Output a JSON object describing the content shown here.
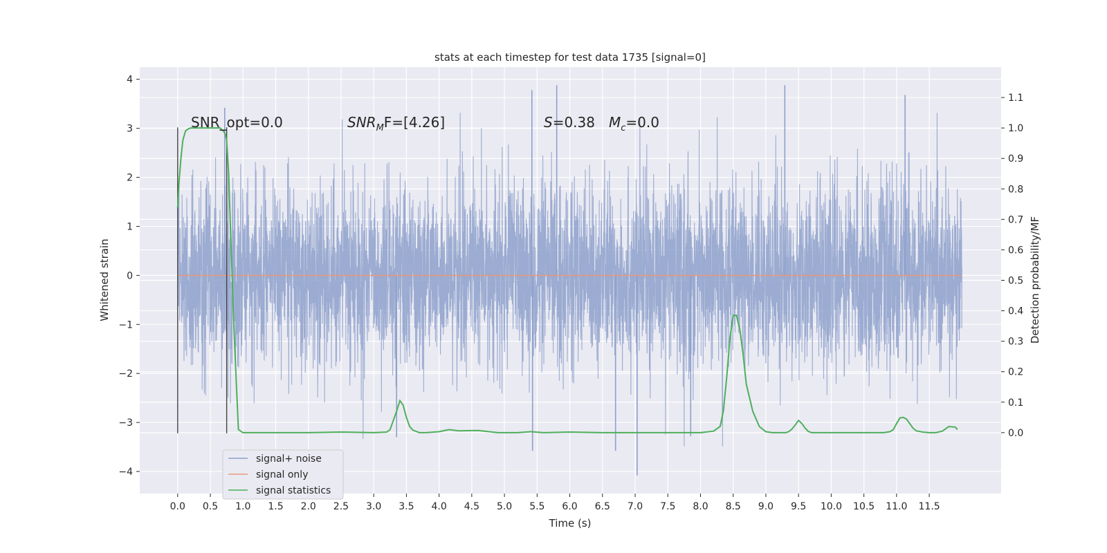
{
  "chart_data": {
    "type": "line",
    "title": "stats at each timestep for test data 1735 [signal=0]",
    "xlabel": "Time (s)",
    "ylabel": "Whitened strain",
    "y2label": "Detection probability/MF",
    "xlim": [
      -0.58,
      12.6
    ],
    "ylim": [
      -4.45,
      4.25
    ],
    "y2lim": [
      -0.2,
      1.2
    ],
    "grid": true,
    "legend_position": "lower-left",
    "x_ticks": [
      "0.0",
      "0.5",
      "1.0",
      "1.5",
      "2.0",
      "2.5",
      "3.0",
      "3.5",
      "4.0",
      "4.5",
      "5.0",
      "5.5",
      "6.0",
      "6.5",
      "7.0",
      "7.5",
      "8.0",
      "8.5",
      "9.0",
      "9.5",
      "10.0",
      "10.5",
      "11.0",
      "11.5"
    ],
    "y_ticks": [
      "4",
      "3",
      "2",
      "1",
      "0",
      "−1",
      "−2",
      "−3",
      "−4"
    ],
    "y2_ticks": [
      "1.1",
      "1.0",
      "0.9",
      "0.8",
      "0.7",
      "0.6",
      "0.5",
      "0.4",
      "0.3",
      "0.2",
      "0.1",
      "0.0"
    ],
    "series": [
      {
        "name": "signal+ noise",
        "color": "#8da0cb",
        "kind": "noise-band",
        "x_range": [
          0.0,
          12.0
        ],
        "typical_amplitude": 1.8,
        "max": 3.9,
        "min": -4.1,
        "peaks": [
          [
            0.72,
            3.42
          ],
          [
            5.42,
            3.78
          ],
          [
            5.8,
            3.88
          ],
          [
            9.29,
            3.88
          ],
          [
            11.13,
            3.68
          ]
        ],
        "troughs": [
          [
            3.35,
            -3.3
          ],
          [
            5.43,
            -3.58
          ],
          [
            6.7,
            -3.58
          ],
          [
            7.03,
            -4.08
          ],
          [
            7.85,
            -3.28
          ]
        ]
      },
      {
        "name": "signal only",
        "color": "#e49a7e",
        "x": [
          0.0,
          12.0
        ],
        "y": [
          0.0,
          0.0
        ]
      },
      {
        "name": "signal statistics",
        "color": "#4daf5a",
        "axis": "right",
        "x": [
          0.0,
          0.02,
          0.05,
          0.08,
          0.12,
          0.16,
          0.2,
          0.3,
          0.4,
          0.5,
          0.6,
          0.65,
          0.7,
          0.73,
          0.75,
          0.78,
          0.82,
          0.86,
          0.9,
          0.93,
          1.0,
          1.5,
          2.0,
          2.5,
          3.0,
          3.2,
          3.25,
          3.3,
          3.35,
          3.4,
          3.45,
          3.5,
          3.55,
          3.6,
          3.7,
          3.8,
          4.0,
          4.15,
          4.3,
          4.6,
          4.9,
          5.2,
          5.4,
          5.6,
          6.0,
          6.5,
          7.0,
          7.5,
          8.0,
          8.2,
          8.3,
          8.35,
          8.4,
          8.45,
          8.5,
          8.55,
          8.6,
          8.65,
          8.7,
          8.8,
          8.9,
          9.0,
          9.1,
          9.2,
          9.3,
          9.35,
          9.4,
          9.45,
          9.5,
          9.55,
          9.6,
          9.65,
          9.7,
          9.8,
          10.0,
          10.5,
          10.8,
          10.9,
          10.95,
          11.0,
          11.05,
          11.1,
          11.15,
          11.2,
          11.25,
          11.3,
          11.4,
          11.5,
          11.6,
          11.7,
          11.8,
          11.9,
          11.93
        ],
        "y": [
          0.74,
          0.82,
          0.9,
          0.96,
          0.99,
          0.997,
          1.0,
          1.0,
          1.0,
          1.0,
          1.0,
          1.0,
          0.99,
          0.98,
          0.96,
          0.85,
          0.6,
          0.35,
          0.15,
          0.01,
          0.0,
          0.0,
          0.0,
          0.002,
          0.0,
          0.002,
          0.01,
          0.04,
          0.07,
          0.105,
          0.09,
          0.05,
          0.02,
          0.008,
          0.0,
          0.0,
          0.003,
          0.01,
          0.006,
          0.007,
          0.0,
          0.0,
          0.003,
          0.0,
          0.002,
          0.0,
          0.0,
          0.0,
          0.0,
          0.005,
          0.02,
          0.07,
          0.18,
          0.31,
          0.385,
          0.385,
          0.34,
          0.26,
          0.16,
          0.07,
          0.02,
          0.003,
          0.0,
          0.0,
          0.0,
          0.003,
          0.012,
          0.025,
          0.04,
          0.03,
          0.015,
          0.004,
          0.0,
          0.0,
          0.0,
          0.0,
          0.0,
          0.003,
          0.01,
          0.03,
          0.048,
          0.05,
          0.045,
          0.03,
          0.015,
          0.006,
          0.002,
          0.0,
          0.0,
          0.005,
          0.02,
          0.018,
          0.01
        ]
      }
    ],
    "vlines": [
      0.0,
      0.75
    ],
    "annotations": [
      {
        "kind": "plain",
        "text": "SNR_opt=0.0"
      },
      {
        "kind": "sub",
        "base": "SNR",
        "sub": "M",
        "tail": "F=[4.26]"
      },
      {
        "kind": "italic",
        "base": "S",
        "tail": "=0.38"
      },
      {
        "kind": "sub",
        "base": "M",
        "sub": "c",
        "tail": "=0.0"
      }
    ]
  }
}
